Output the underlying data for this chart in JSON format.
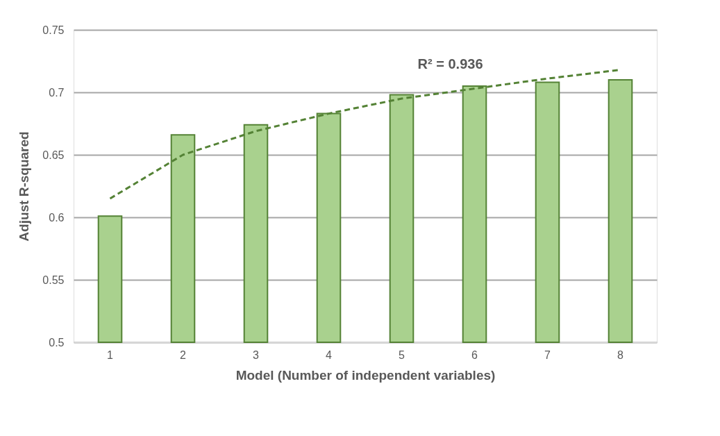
{
  "chart_data": {
    "type": "bar",
    "xlabel": "Model (Number of independent variables)",
    "ylabel": "Adjust R-squared",
    "categories": [
      "1",
      "2",
      "3",
      "4",
      "5",
      "6",
      "7",
      "8"
    ],
    "series": [
      {
        "color": "#a9d18e",
        "values": [
          0.601,
          0.666,
          0.674,
          0.683,
          0.698,
          0.705,
          0.708,
          0.71
        ]
      },
      {
        "type": "line",
        "color": "#548235",
        "line_style": "dashed",
        "values": [
          0.615,
          0.65,
          0.669,
          0.683,
          0.695,
          0.703,
          0.711,
          0.718
        ]
      }
    ],
    "ylim": [
      0.5,
      0.75
    ],
    "yticks": [
      0.5,
      0.55,
      0.6,
      0.65,
      0.7,
      0.75
    ],
    "grid": "y",
    "annotations": [
      "R² = 0.936"
    ]
  }
}
